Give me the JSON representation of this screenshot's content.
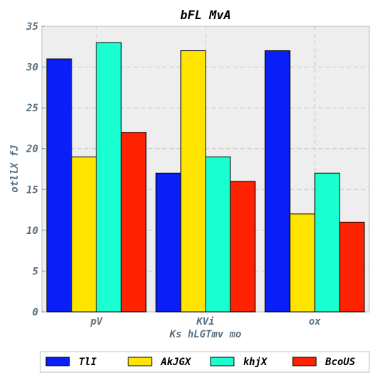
{
  "chart_data": {
    "type": "bar",
    "title": "bFL MvA",
    "xlabel": "Ks  hLGTmv mo",
    "ylabel": "otllX fJ",
    "categories": [
      "pV",
      "KVi",
      "ox"
    ],
    "ylim": [
      0,
      35
    ],
    "yticks": [
      0,
      5,
      10,
      15,
      20,
      25,
      30,
      35
    ],
    "grid": true,
    "legend_position": "bottom",
    "series": [
      {
        "name": "TlI",
        "color": "#0a1ff5",
        "values": [
          31,
          17,
          32
        ]
      },
      {
        "name": "AkJGX",
        "color": "#ffe400",
        "values": [
          19,
          32,
          12
        ]
      },
      {
        "name": "khjX",
        "color": "#19ffd2",
        "values": [
          33,
          19,
          17
        ]
      },
      {
        "name": "BcoUS",
        "color": "#ff2200",
        "values": [
          22,
          16,
          11
        ]
      }
    ]
  }
}
